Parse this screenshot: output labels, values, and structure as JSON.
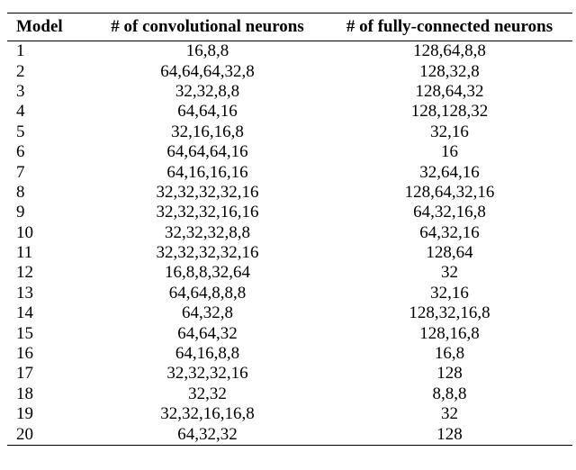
{
  "table": {
    "header": [
      "Model",
      "# of convolutional neurons",
      "# of fully-connected neurons"
    ],
    "rows": [
      [
        "1",
        "16,8,8",
        "128,64,8,8"
      ],
      [
        "2",
        "64,64,64,32,8",
        "128,32,8"
      ],
      [
        "3",
        "32,32,8,8",
        "128,64,32"
      ],
      [
        "4",
        "64,64,16",
        "128,128,32"
      ],
      [
        "5",
        "32,16,16,8",
        "32,16"
      ],
      [
        "6",
        "64,64,64,16",
        "16"
      ],
      [
        "7",
        "64,16,16,16",
        "32,64,16"
      ],
      [
        "8",
        "32,32,32,32,16",
        "128,64,32,16"
      ],
      [
        "9",
        "32,32,32,16,16",
        "64,32,16,8"
      ],
      [
        "10",
        "32,32,32,8,8",
        "64,32,16"
      ],
      [
        "11",
        "32,32,32,32,16",
        "128,64"
      ],
      [
        "12",
        "16,8,8,32,64",
        "32"
      ],
      [
        "13",
        "64,64,8,8,8",
        "32,16"
      ],
      [
        "14",
        "64,32,8",
        "128,32,16,8"
      ],
      [
        "15",
        "64,64,32",
        "128,16,8"
      ],
      [
        "16",
        "64,16,8,8",
        "16,8"
      ],
      [
        "17",
        "32,32,32,16",
        "128"
      ],
      [
        "18",
        "32,32",
        "8,8,8"
      ],
      [
        "19",
        "32,32,16,16,8",
        "32"
      ],
      [
        "20",
        "64,32,32",
        "128"
      ]
    ]
  }
}
